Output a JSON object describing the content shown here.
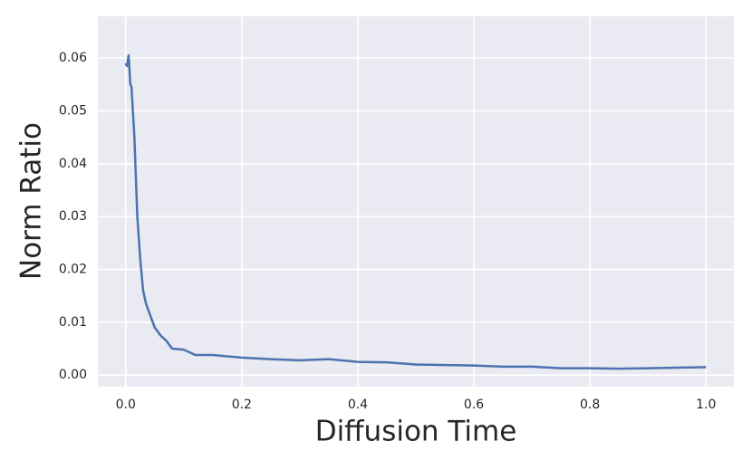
{
  "chart_data": {
    "type": "line",
    "xlabel": "Diffusion Time",
    "ylabel": "Norm Ratio",
    "x": [
      0,
      0.002,
      0.005,
      0.008,
      0.01,
      0.015,
      0.02,
      0.025,
      0.03,
      0.035,
      0.04,
      0.05,
      0.06,
      0.07,
      0.08,
      0.1,
      0.12,
      0.15,
      0.2,
      0.25,
      0.3,
      0.35,
      0.4,
      0.45,
      0.5,
      0.55,
      0.6,
      0.65,
      0.7,
      0.75,
      0.8,
      0.85,
      0.9,
      0.95,
      1.0
    ],
    "series": [
      {
        "color": "#4c72b0",
        "values": [
          0.059,
          0.0585,
          0.0605,
          0.055,
          0.0545,
          0.045,
          0.03,
          0.022,
          0.016,
          0.0135,
          0.012,
          0.009,
          0.0075,
          0.0065,
          0.005,
          0.0048,
          0.0038,
          0.0038,
          0.0033,
          0.003,
          0.0028,
          0.003,
          0.0025,
          0.0024,
          0.002,
          0.0019,
          0.0018,
          0.0016,
          0.0016,
          0.0013,
          0.0013,
          0.0012,
          0.0013,
          0.0014,
          0.0015
        ]
      }
    ],
    "xlim": [
      -0.048,
      1.048
    ],
    "ylim": [
      -0.0022,
      0.0679
    ],
    "xticks": [
      {
        "value": 0,
        "label": "0.0"
      },
      {
        "value": 0.2,
        "label": "0.2"
      },
      {
        "value": 0.4,
        "label": "0.4"
      },
      {
        "value": 0.6,
        "label": "0.6"
      },
      {
        "value": 0.8,
        "label": "0.8"
      },
      {
        "value": 1,
        "label": "1.0"
      }
    ],
    "yticks": [
      {
        "value": 0,
        "label": "0.00"
      },
      {
        "value": 0.01,
        "label": "0.01"
      },
      {
        "value": 0.02,
        "label": "0.02"
      },
      {
        "value": 0.03,
        "label": "0.03"
      },
      {
        "value": 0.04,
        "label": "0.04"
      },
      {
        "value": 0.05,
        "label": "0.05"
      },
      {
        "value": 0.06,
        "label": "0.06"
      }
    ],
    "grid": true,
    "background": "#eaeaf2"
  }
}
